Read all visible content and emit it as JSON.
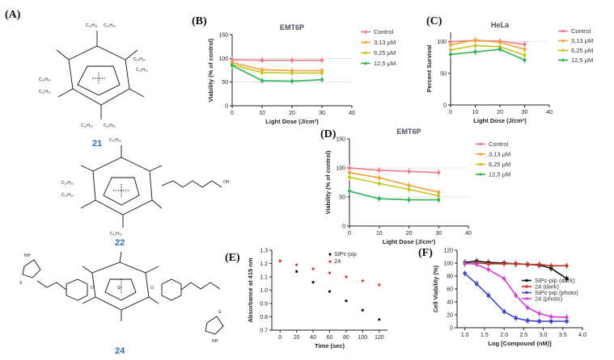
{
  "figure": {
    "panel_labels": {
      "a": "(A)",
      "b": "(B)",
      "c": "(C)",
      "d": "(D)",
      "e": "(E)",
      "f": "(F)"
    },
    "compounds": [
      {
        "id": "21",
        "substituent": "C12H25"
      },
      {
        "id": "22",
        "substituent": "C12H25",
        "tail": "OH"
      },
      {
        "id": "24"
      }
    ],
    "mol_labels": {
      "alkyl": "C₁₂H₂₅",
      "oh": "OH",
      "si": "Si",
      "n": "N",
      "nh": "NH",
      "o": "O",
      "s": "S"
    }
  },
  "chart_data": [
    {
      "id": "B",
      "type": "line",
      "title": "EMT6P",
      "xlabel": "Light Dose (J/cm²)",
      "ylabel": "Viability (% of control)",
      "xlim": [
        0,
        40
      ],
      "ylim": [
        0,
        150
      ],
      "xticks": [
        0,
        10,
        20,
        30,
        40
      ],
      "yticks": [
        0,
        50,
        100,
        150
      ],
      "grid_y": [
        50,
        100
      ],
      "legend": "right",
      "series": [
        {
          "name": "Control",
          "color": "#ee7a86",
          "x": [
            0,
            10,
            20,
            30
          ],
          "y": [
            97,
            96,
            96,
            96
          ]
        },
        {
          "name": "3,13 μM",
          "color": "#f2a33a",
          "x": [
            0,
            10,
            20,
            30
          ],
          "y": [
            91,
            76,
            74,
            74
          ]
        },
        {
          "name": "6,25 μM",
          "color": "#c5c41d",
          "x": [
            0,
            10,
            20,
            30
          ],
          "y": [
            87,
            70,
            69,
            69
          ]
        },
        {
          "name": "12,5 μM",
          "color": "#33b257",
          "x": [
            0,
            10,
            20,
            30
          ],
          "y": [
            85,
            53,
            52,
            55
          ]
        }
      ]
    },
    {
      "id": "C",
      "type": "line",
      "title": "HeLa",
      "xlabel": "Light Dose (J/cm²)",
      "ylabel": "Percent Survival",
      "xlim": [
        0,
        40
      ],
      "ylim": [
        0,
        115
      ],
      "xticks": [
        0,
        10,
        20,
        30,
        40
      ],
      "yticks": [
        0,
        50,
        100
      ],
      "grid_y": [
        100
      ],
      "legend": "right",
      "series": [
        {
          "name": "Control",
          "color": "#ee7a86",
          "x": [
            0,
            10,
            20,
            30
          ],
          "y": [
            100,
            102,
            101,
            96
          ]
        },
        {
          "name": "3,13 μM",
          "color": "#f2a33a",
          "x": [
            0,
            10,
            20,
            30
          ],
          "y": [
            95,
            103,
            99,
            88
          ]
        },
        {
          "name": "6,25 μM",
          "color": "#c5c41d",
          "x": [
            0,
            10,
            20,
            30
          ],
          "y": [
            87,
            94,
            92,
            79
          ]
        },
        {
          "name": "12,5 μM",
          "color": "#33b257",
          "x": [
            0,
            10,
            20,
            30
          ],
          "y": [
            80,
            84,
            88,
            71
          ]
        }
      ]
    },
    {
      "id": "D",
      "type": "line",
      "title": "EMT6P",
      "xlabel": "Light Dose (J/cm²)",
      "ylabel": "Viability (% of control)",
      "xlim": [
        0,
        40
      ],
      "ylim": [
        0,
        150
      ],
      "xticks": [
        0,
        10,
        20,
        30,
        40
      ],
      "yticks": [
        0,
        50,
        100,
        150
      ],
      "grid_y": [
        50,
        100
      ],
      "legend": "right",
      "series": [
        {
          "name": "Control",
          "color": "#ee7a86",
          "x": [
            0,
            10,
            20,
            30
          ],
          "y": [
            100,
            96,
            94,
            92
          ]
        },
        {
          "name": "3,13 μM",
          "color": "#f2a33a",
          "x": [
            0,
            10,
            20,
            30
          ],
          "y": [
            92,
            83,
            70,
            58
          ]
        },
        {
          "name": "6,25 μM",
          "color": "#c5c41d",
          "x": [
            0,
            10,
            20,
            30
          ],
          "y": [
            84,
            73,
            63,
            52
          ]
        },
        {
          "name": "12,5 μM",
          "color": "#33b257",
          "x": [
            0,
            10,
            20,
            30
          ],
          "y": [
            60,
            47,
            45,
            45
          ]
        }
      ]
    },
    {
      "id": "E",
      "type": "scatter",
      "title": "",
      "xlabel": "Time (sec)",
      "ylabel": "Absorbance at 415 nm",
      "xlim": [
        -10,
        130
      ],
      "ylim": [
        0.7,
        1.3
      ],
      "xticks": [
        0,
        20,
        40,
        60,
        80,
        100,
        120
      ],
      "yticks": [
        0.7,
        0.8,
        0.9,
        1.0,
        1.1,
        1.2,
        1.3
      ],
      "legend": "top-right",
      "series": [
        {
          "name": "SiPc-pip",
          "color": "#111111",
          "x": [
            0,
            20,
            40,
            60,
            80,
            100,
            120
          ],
          "y": [
            1.22,
            1.14,
            1.06,
            0.99,
            0.92,
            0.85,
            0.78
          ]
        },
        {
          "name": "24",
          "color": "#e0362c",
          "x": [
            0,
            20,
            40,
            60,
            80,
            100,
            120
          ],
          "y": [
            1.22,
            1.19,
            1.16,
            1.13,
            1.1,
            1.07,
            1.04
          ]
        }
      ]
    },
    {
      "id": "F",
      "type": "line",
      "title": "",
      "xlabel": "Log [Compound (nM)]",
      "ylabel": "Cell Viability (%)",
      "xlim": [
        0.8,
        4.0
      ],
      "ylim": [
        0,
        120
      ],
      "xticks": [
        1.0,
        1.5,
        2.0,
        2.5,
        3.0,
        3.5,
        4.0
      ],
      "yticks": [
        0,
        20,
        40,
        60,
        80,
        100,
        120
      ],
      "legend": "right",
      "series": [
        {
          "name": "SiPc-pip (dark)",
          "color": "#111111",
          "x": [
            1.0,
            1.3,
            1.6,
            2.0,
            2.3,
            2.6,
            2.9,
            3.2,
            3.6
          ],
          "y": [
            101,
            103,
            101,
            100,
            99,
            98,
            97,
            92,
            76
          ]
        },
        {
          "name": "24 (dark)",
          "color": "#c8372d",
          "x": [
            1.0,
            1.3,
            1.6,
            2.0,
            2.3,
            2.6,
            2.9,
            3.2,
            3.6
          ],
          "y": [
            99,
            100,
            99,
            99,
            99,
            98,
            98,
            96,
            96
          ]
        },
        {
          "name": "SiPc-pip (photo)",
          "color": "#4046c4",
          "x": [
            1.0,
            1.3,
            1.6,
            2.0,
            2.3,
            2.6,
            2.9,
            3.2,
            3.6
          ],
          "y": [
            84,
            68,
            50,
            25,
            15,
            11,
            10,
            10,
            10
          ]
        },
        {
          "name": "24 (photo)",
          "color": "#cc44cc",
          "x": [
            1.0,
            1.3,
            1.6,
            2.0,
            2.3,
            2.6,
            2.9,
            3.2,
            3.6
          ],
          "y": [
            100,
            98,
            90,
            76,
            50,
            31,
            22,
            17,
            16
          ]
        }
      ]
    }
  ]
}
